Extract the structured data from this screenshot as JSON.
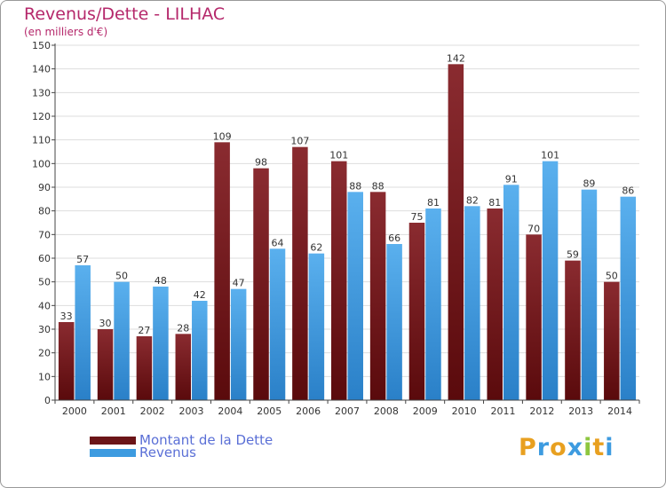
{
  "title": "Revenus/Dette - LILHAC",
  "subtitle": "(en milliers d'€)",
  "chart_data": {
    "type": "bar",
    "title": "Revenus/Dette - LILHAC",
    "subtitle": "(en milliers d'€)",
    "xlabel": "",
    "ylabel": "",
    "ylim": [
      0,
      150
    ],
    "yticks": [
      0,
      10,
      20,
      30,
      40,
      50,
      60,
      70,
      80,
      90,
      100,
      110,
      120,
      130,
      140,
      150
    ],
    "grid": true,
    "legend_position": "bottom-left",
    "categories": [
      "2000",
      "2001",
      "2002",
      "2003",
      "2004",
      "2005",
      "2006",
      "2007",
      "2008",
      "2009",
      "2010",
      "2011",
      "2012",
      "2013",
      "2014"
    ],
    "series": [
      {
        "name": "Montant de la Dette",
        "color": "#7a1e24",
        "values": [
          33,
          30,
          27,
          28,
          109,
          98,
          107,
          101,
          88,
          75,
          142,
          81,
          70,
          59,
          50
        ]
      },
      {
        "name": "Revenus",
        "color": "#3d9be0",
        "values": [
          57,
          50,
          48,
          42,
          47,
          64,
          62,
          88,
          66,
          81,
          82,
          91,
          101,
          89,
          86
        ]
      }
    ]
  },
  "legend": {
    "items": [
      {
        "label": "Montant de la Dette",
        "color": "#6b1518"
      },
      {
        "label": "Revenus",
        "color": "#3d9be0"
      }
    ]
  },
  "logo": {
    "letters": [
      "P",
      "r",
      "o",
      "x",
      "i",
      "t",
      "i"
    ],
    "colors": [
      "#e8a020",
      "#3d9be0",
      "#e8a020",
      "#3d9be0",
      "#8dc63f",
      "#e8a020",
      "#3d9be0"
    ]
  }
}
